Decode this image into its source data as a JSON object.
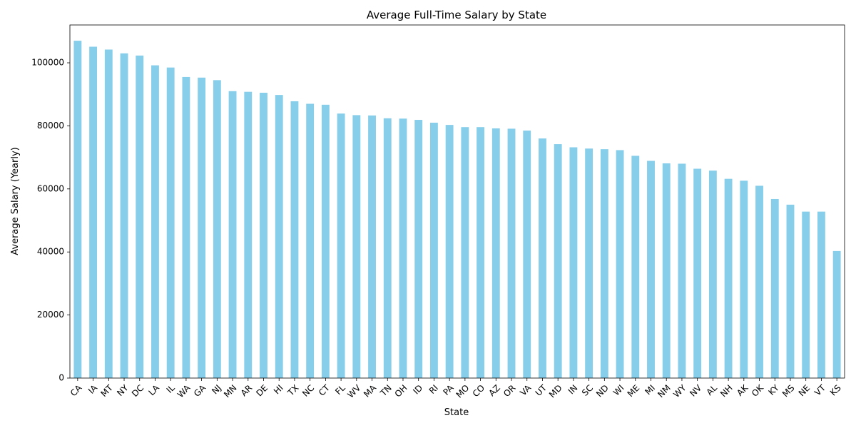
{
  "chart_data": {
    "type": "bar",
    "title": "Average Full-Time Salary by State",
    "xlabel": "State",
    "ylabel": "Average Salary (Yearly)",
    "ylim": [
      0,
      112000
    ],
    "yticks": [
      0,
      20000,
      40000,
      60000,
      80000,
      100000
    ],
    "grid": false,
    "bar_color": "#87CEEB",
    "categories": [
      "CA",
      "IA",
      "MT",
      "NY",
      "DC",
      "LA",
      "IL",
      "WA",
      "GA",
      "NJ",
      "MN",
      "AR",
      "DE",
      "HI",
      "TX",
      "NC",
      "CT",
      "FL",
      "WV",
      "MA",
      "TN",
      "OH",
      "ID",
      "RI",
      "PA",
      "MO",
      "CO",
      "AZ",
      "OR",
      "VA",
      "UT",
      "MD",
      "IN",
      "SC",
      "ND",
      "WI",
      "ME",
      "MI",
      "NM",
      "WY",
      "NV",
      "AL",
      "NH",
      "AK",
      "OK",
      "KY",
      "MS",
      "NE",
      "VT",
      "KS"
    ],
    "values": [
      107000,
      105100,
      104200,
      103000,
      102300,
      99200,
      98500,
      95500,
      95300,
      94500,
      91000,
      90800,
      90500,
      89800,
      87800,
      87000,
      86700,
      83900,
      83400,
      83300,
      82400,
      82300,
      81900,
      81000,
      80300,
      79600,
      79600,
      79200,
      79100,
      78500,
      76000,
      74200,
      73200,
      72800,
      72600,
      72300,
      70500,
      68900,
      68100,
      68000,
      66400,
      65800,
      63200,
      62600,
      61000,
      56800,
      55000,
      52800,
      52800,
      40300
    ]
  }
}
